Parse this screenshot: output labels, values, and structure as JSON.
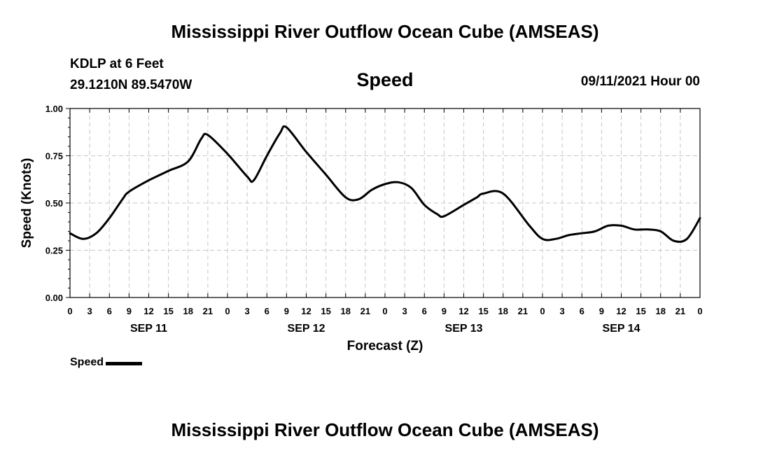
{
  "header": {
    "title": "Mississippi River Outflow Ocean Cube (AMSEAS)",
    "station": "KDLP at 6 Feet",
    "coords": "29.1210N  89.5470W",
    "chart_title": "Speed",
    "datestamp": "09/11/2021 Hour 00"
  },
  "footer": {
    "title": "Mississippi River Outflow Ocean Cube (AMSEAS)"
  },
  "legend": {
    "label": "Speed",
    "color": "#000000"
  },
  "chart_data": {
    "type": "line",
    "title": "Speed",
    "xlabel": "Forecast (Z)",
    "ylabel": "Speed (Knots)",
    "xlim": [
      0,
      96
    ],
    "ylim": [
      0,
      1
    ],
    "yticks": [
      "0.00",
      "0.25",
      "0.50",
      "0.75",
      "1.00"
    ],
    "yvalues": [
      0,
      0.25,
      0.5,
      0.75,
      1.0
    ],
    "xtick_labels": [
      "0",
      "3",
      "6",
      "9",
      "12",
      "15",
      "18",
      "21",
      "0",
      "3",
      "6",
      "9",
      "12",
      "15",
      "18",
      "21",
      "0",
      "3",
      "6",
      "9",
      "12",
      "15",
      "18",
      "21",
      "0",
      "3",
      "6",
      "9",
      "12",
      "15",
      "18",
      "21",
      "0"
    ],
    "day_labels": [
      {
        "label": "SEP 11",
        "hour": 12
      },
      {
        "label": "SEP 12",
        "hour": 36
      },
      {
        "label": "SEP 13",
        "hour": 60
      },
      {
        "label": "SEP 14",
        "hour": 84
      }
    ],
    "grid": true,
    "series": [
      {
        "name": "Speed",
        "x": [
          0,
          2,
          4,
          6,
          8,
          9,
          12,
          15,
          18,
          20,
          21,
          24,
          27,
          28,
          30,
          32,
          33,
          36,
          39,
          42,
          44,
          46,
          48,
          50,
          52,
          54,
          56,
          57,
          60,
          62,
          63,
          66,
          70,
          72,
          74,
          76,
          78,
          80,
          82,
          84,
          86,
          88,
          90,
          92,
          94,
          96
        ],
        "values": [
          0.34,
          0.31,
          0.34,
          0.42,
          0.52,
          0.56,
          0.62,
          0.67,
          0.72,
          0.84,
          0.86,
          0.76,
          0.64,
          0.62,
          0.75,
          0.87,
          0.9,
          0.77,
          0.65,
          0.53,
          0.52,
          0.57,
          0.6,
          0.61,
          0.58,
          0.49,
          0.44,
          0.43,
          0.49,
          0.53,
          0.55,
          0.55,
          0.38,
          0.31,
          0.31,
          0.33,
          0.34,
          0.35,
          0.38,
          0.38,
          0.36,
          0.36,
          0.35,
          0.3,
          0.31,
          0.42
        ]
      }
    ]
  }
}
